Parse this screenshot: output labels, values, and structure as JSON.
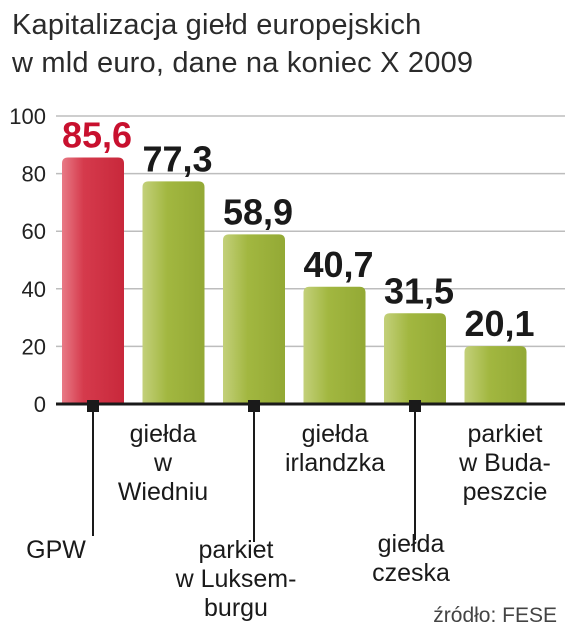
{
  "title_lines": [
    "Kapitalizacja giełd europejskich",
    "w mld euro, dane na koniec X 2009"
  ],
  "source": "źródło: FESE",
  "colors": {
    "highlight_bar": "#d53a4c",
    "bar": "#9fb53e",
    "highlight_label": "#c8102e",
    "label": "#1a1a1a",
    "grid": "#bdbdbd",
    "axis": "#1a1a1a"
  },
  "chart_data": {
    "type": "bar",
    "title": "Kapitalizacja giełd europejskich w mld euro, dane na koniec X 2009",
    "xlabel": "",
    "ylabel": "",
    "ylim": [
      0,
      100
    ],
    "yticks": [
      0,
      20,
      40,
      60,
      80,
      100
    ],
    "grid": true,
    "categories": [
      "GPW",
      "giełda w Wiedniu",
      "parkiet w Luksemburgu",
      "giełda irlandzka",
      "giełda czeska",
      "parkiet w Budapeszcie"
    ],
    "category_label_lines": [
      [
        "GPW"
      ],
      [
        "giełda",
        "w",
        "Wiedniu"
      ],
      [
        "parkiet",
        "w Luksem-",
        "burgu"
      ],
      [
        "giełda",
        "irlandzka"
      ],
      [
        "giełda",
        "czeska"
      ],
      [
        "parkiet",
        "w Buda-",
        "peszcie"
      ]
    ],
    "values": [
      85.6,
      77.3,
      58.9,
      40.7,
      31.5,
      20.1
    ],
    "value_labels": [
      "85,6",
      "77,3",
      "58,9",
      "40,7",
      "31,5",
      "20,1"
    ],
    "highlight_index": 0
  }
}
